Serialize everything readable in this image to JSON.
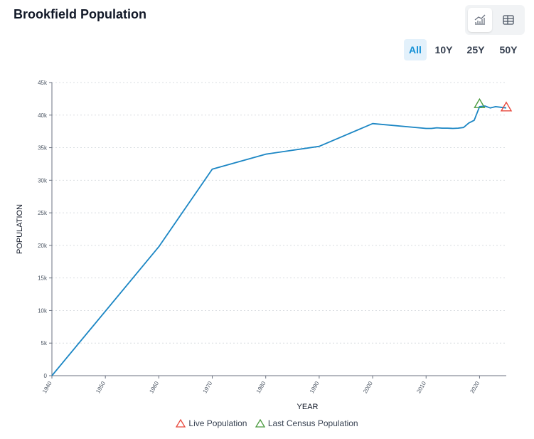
{
  "header": {
    "title": "Brookfield Population"
  },
  "view_toggle": {
    "chart_icon": "line-chart-icon",
    "table_icon": "table-grid-icon",
    "active": "chart"
  },
  "ranges": [
    {
      "label": "All",
      "active": true
    },
    {
      "label": "10Y",
      "active": false
    },
    {
      "label": "25Y",
      "active": false
    },
    {
      "label": "50Y",
      "active": false
    }
  ],
  "colors": {
    "line": "#1b86c4",
    "live_marker": "#e8473b",
    "census_marker": "#4a9a3f",
    "accent": "#1491d6",
    "grid": "#d9dde1"
  },
  "chart_data": {
    "type": "line",
    "title": "",
    "xlabel": "YEAR",
    "ylabel": "POPULATION",
    "xlim": [
      1940,
      2025
    ],
    "ylim": [
      0,
      45000
    ],
    "x_ticks": [
      1940,
      1950,
      1960,
      1970,
      1980,
      1990,
      2000,
      2010,
      2020
    ],
    "y_ticks": [
      0,
      5000,
      10000,
      15000,
      20000,
      25000,
      30000,
      35000,
      40000,
      45000
    ],
    "y_tick_labels": [
      "0",
      "5k",
      "10k",
      "15k",
      "20k",
      "25k",
      "30k",
      "35k",
      "40k",
      "45k"
    ],
    "grid": "horizontal dotted",
    "series": [
      {
        "values": [
          [
            1940,
            0
          ],
          [
            1960,
            19800
          ],
          [
            1970,
            31700
          ],
          [
            1980,
            34000
          ],
          [
            1990,
            35200
          ],
          [
            2000,
            38700
          ],
          [
            2010,
            37950
          ],
          [
            2011,
            37950
          ],
          [
            2012,
            38050
          ],
          [
            2013,
            38000
          ],
          [
            2014,
            38000
          ],
          [
            2015,
            37950
          ],
          [
            2016,
            38000
          ],
          [
            2017,
            38100
          ],
          [
            2018,
            38800
          ],
          [
            2019,
            39200
          ],
          [
            2020,
            41300
          ],
          [
            2021,
            41400
          ],
          [
            2022,
            41100
          ],
          [
            2023,
            41300
          ],
          [
            2024,
            41200
          ],
          [
            2025,
            41100
          ]
        ]
      }
    ],
    "markers": [
      {
        "name": "Live Population",
        "x": 2025,
        "y": 41200,
        "shape": "triangle",
        "color": "#e8473b"
      },
      {
        "name": "Last Census Population",
        "x": 2020,
        "y": 41700,
        "shape": "triangle",
        "color": "#4a9a3f"
      }
    ],
    "legend": {
      "placement": "bottom-center",
      "entries": [
        "Live Population",
        "Last Census Population"
      ]
    }
  }
}
